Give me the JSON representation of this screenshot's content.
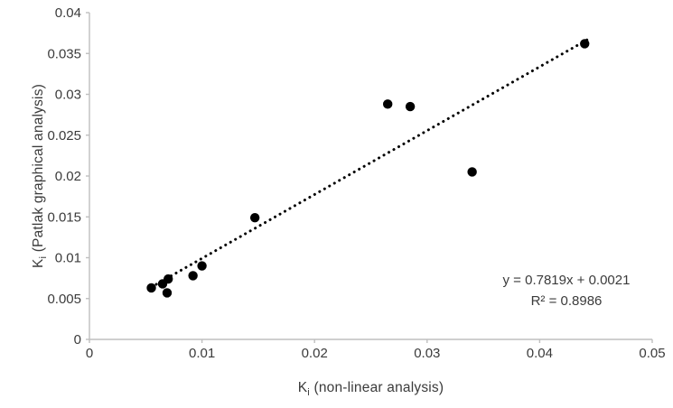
{
  "chart_data": {
    "type": "scatter",
    "title": "",
    "xlabel": {
      "pre": "K",
      "sub": "i",
      "post": " (non-linear analysis)"
    },
    "ylabel": {
      "pre": "K",
      "sub": "i",
      "post": " (Patlak graphical analysis)"
    },
    "x_axis": {
      "min": 0,
      "max": 0.05,
      "step": 0.01,
      "ticks": [
        "0",
        "0.01",
        "0.02",
        "0.03",
        "0.04",
        "0.05"
      ]
    },
    "y_axis": {
      "min": 0,
      "max": 0.04,
      "step": 0.005,
      "ticks": [
        "0",
        "0.005",
        "0.01",
        "0.015",
        "0.02",
        "0.025",
        "0.03",
        "0.035",
        "0.04"
      ]
    },
    "points": [
      [
        0.0055,
        0.0063
      ],
      [
        0.0065,
        0.0068
      ],
      [
        0.007,
        0.0074
      ],
      [
        0.0069,
        0.0057
      ],
      [
        0.0092,
        0.0078
      ],
      [
        0.01,
        0.009
      ],
      [
        0.0147,
        0.0149
      ],
      [
        0.0265,
        0.0288
      ],
      [
        0.0285,
        0.0285
      ],
      [
        0.034,
        0.0205
      ],
      [
        0.044,
        0.0362
      ]
    ],
    "marker_radius": 5.2,
    "trendline": {
      "slope": 0.7819,
      "intercept": 0.0021,
      "x_start": 0.0055,
      "x_end": 0.0443,
      "style": "dotted",
      "equation_label": "y = 0.7819x + 0.0021",
      "r2_label": "R² = 0.8986"
    },
    "grid": false,
    "legend": "none",
    "colors": {
      "point": "#000000",
      "trendline": "#000000",
      "axis": "#bfbfbf",
      "tick_label": "#3b3b3b",
      "axis_title": "#3b3b3b",
      "background": "#ffffff"
    }
  }
}
